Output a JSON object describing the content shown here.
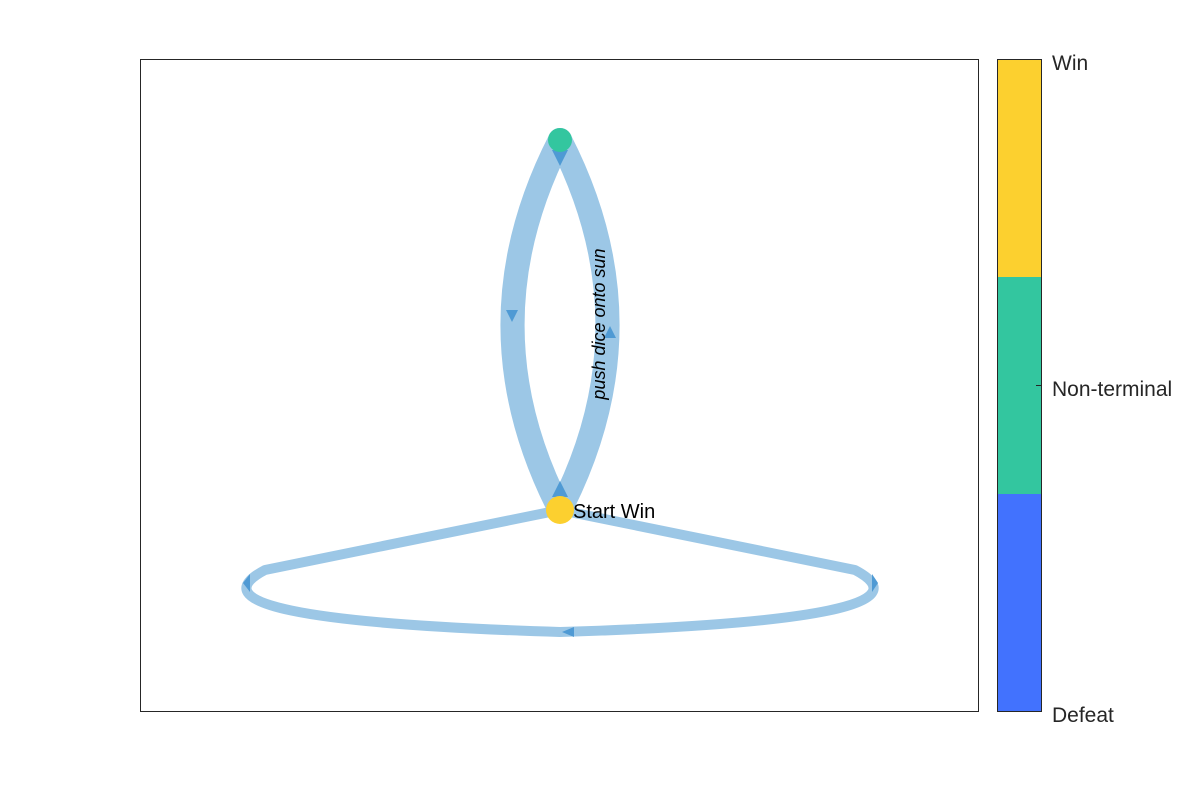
{
  "graph": {
    "nodes": [
      {
        "id": "start",
        "label": "Start Win",
        "state": "Win"
      },
      {
        "id": "top",
        "label": "",
        "state": "Non-terminal"
      }
    ],
    "edges": [
      {
        "from": "top",
        "to": "start",
        "label": ""
      },
      {
        "from": "start",
        "to": "top",
        "label": "push dice onto sun"
      },
      {
        "from": "start",
        "to": "start",
        "label": ""
      }
    ]
  },
  "colorbar": {
    "entries": [
      {
        "label": "Win",
        "color": "#fcd02f"
      },
      {
        "label": "Non-terminal",
        "color": "#33c69f"
      },
      {
        "label": "Defeat",
        "color": "#4272fe"
      }
    ]
  },
  "colors": {
    "edge": "#9cc7e6",
    "arrow": "#4f9ad4",
    "win": "#fcd02f",
    "non_terminal": "#33c69f",
    "defeat": "#4272fe"
  }
}
